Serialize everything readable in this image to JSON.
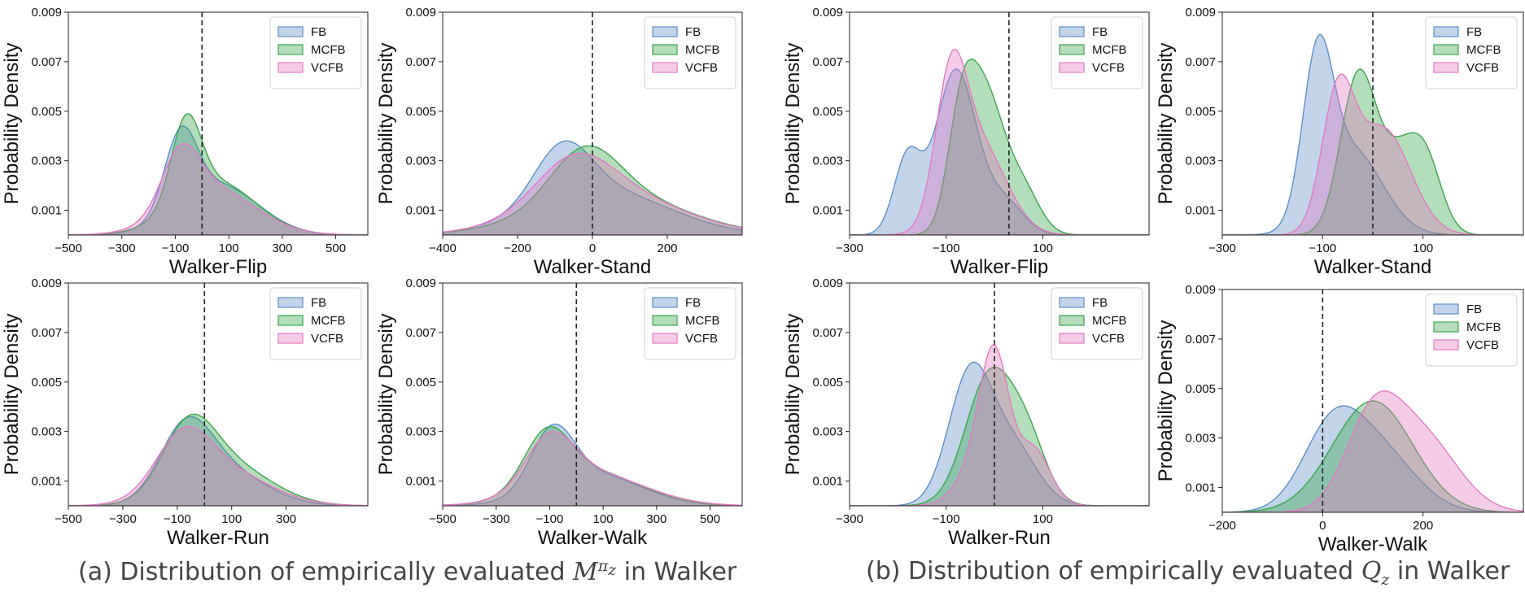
{
  "colors": {
    "FB": "#5b8fc7",
    "MCFB": "#3aa64a",
    "VCFB": "#e379c3"
  },
  "captions": {
    "a_prefix": "(a) Distribution of empirically evaluated ",
    "a_symbol": "M",
    "a_sup": "π",
    "a_sub": "z",
    "a_suffix": " in Walker",
    "b_prefix": "(b) Distribution of empirically evaluated ",
    "b_symbol": "Q",
    "b_sub": "z",
    "b_suffix": " in Walker"
  },
  "chart_data": [
    {
      "type": "area",
      "group": "a",
      "title": "",
      "xlabel": "Walker-Flip",
      "ylabel": "Probability Density",
      "xlim": [
        -500,
        620
      ],
      "ylim": [
        0,
        0.009
      ],
      "vline": 0,
      "xticks": [
        -500,
        -300,
        -100,
        100,
        300,
        500
      ],
      "yticks": [
        0.001,
        0.003,
        0.005,
        0.007,
        0.009
      ],
      "legend": [
        "FB",
        "MCFB",
        "VCFB"
      ],
      "legend_loc": "upper right",
      "series": [
        {
          "name": "FB",
          "comps": [
            [
              -80,
              60,
              0.6
            ],
            [
              60,
              150,
              0.4
            ]
          ]
        },
        {
          "name": "MCFB",
          "comps": [
            [
              -60,
              55,
              0.6
            ],
            [
              50,
              150,
              0.4
            ]
          ]
        },
        {
          "name": "VCFB",
          "comps": [
            [
              -80,
              70,
              0.55
            ],
            [
              40,
              160,
              0.45
            ]
          ]
        }
      ],
      "peaks": {
        "FB": 0.0044,
        "MCFB": 0.0049,
        "VCFB": 0.0037
      }
    },
    {
      "type": "area",
      "group": "a",
      "title": "",
      "xlabel": "Walker-Stand",
      "ylabel": "Probability Density",
      "xlim": [
        -400,
        400
      ],
      "ylim": [
        0,
        0.009
      ],
      "vline": 0,
      "xticks": [
        -400,
        -200,
        0,
        200
      ],
      "yticks": [
        0.001,
        0.003,
        0.005,
        0.007,
        0.009
      ],
      "legend": [
        "FB",
        "MCFB",
        "VCFB"
      ],
      "legend_loc": "upper right",
      "series": [
        {
          "name": "FB",
          "comps": [
            [
              -80,
              75,
              0.55
            ],
            [
              20,
              180,
              0.45
            ]
          ]
        },
        {
          "name": "MCFB",
          "comps": [
            [
              -20,
              90,
              0.55
            ],
            [
              50,
              190,
              0.45
            ]
          ]
        },
        {
          "name": "VCFB",
          "comps": [
            [
              -50,
              100,
              0.5
            ],
            [
              40,
              190,
              0.5
            ]
          ]
        }
      ],
      "peaks": {
        "FB": 0.0038,
        "MCFB": 0.0036,
        "VCFB": 0.0033
      }
    },
    {
      "type": "area",
      "group": "b",
      "title": "",
      "xlabel": "Walker-Flip",
      "ylabel": "Probability Density",
      "xlim": [
        -300,
        320
      ],
      "ylim": [
        0,
        0.009
      ],
      "vline": 30,
      "xticks": [
        -300,
        -100,
        100
      ],
      "yticks": [
        0.001,
        0.003,
        0.005,
        0.007,
        0.009
      ],
      "legend": [
        "FB",
        "MCFB",
        "VCFB"
      ],
      "legend_loc": "upper right",
      "series": [
        {
          "name": "FB",
          "comps": [
            [
              -180,
              28,
              0.28
            ],
            [
              -80,
              42,
              0.6
            ],
            [
              20,
              40,
              0.12
            ]
          ]
        },
        {
          "name": "MCFB",
          "comps": [
            [
              -70,
              28,
              0.4
            ],
            [
              -20,
              40,
              0.6
            ],
            [
              60,
              35,
              0.18
            ]
          ]
        },
        {
          "name": "VCFB",
          "comps": [
            [
              -90,
              32,
              0.6
            ],
            [
              -30,
              55,
              0.4
            ]
          ]
        }
      ],
      "peaks": {
        "FB": 0.0067,
        "MCFB": 0.0071,
        "VCFB": 0.0075
      }
    },
    {
      "type": "area",
      "group": "b",
      "title": "",
      "xlabel": "Walker-Stand",
      "ylabel": "Probability Density",
      "xlim": [
        -300,
        300
      ],
      "ylim": [
        0,
        0.009
      ],
      "vline": 0,
      "xticks": [
        -300,
        -100,
        100
      ],
      "yticks": [
        0.001,
        0.003,
        0.005,
        0.007,
        0.009
      ],
      "legend": [
        "FB",
        "MCFB",
        "VCFB"
      ],
      "legend_loc": "upper right",
      "series": [
        {
          "name": "FB",
          "comps": [
            [
              -110,
              30,
              0.65
            ],
            [
              -40,
              60,
              0.35
            ]
          ]
        },
        {
          "name": "MCFB",
          "comps": [
            [
              -30,
              35,
              0.55
            ],
            [
              60,
              45,
              0.3
            ],
            [
              110,
              30,
              0.15
            ]
          ]
        },
        {
          "name": "VCFB",
          "comps": [
            [
              -70,
              32,
              0.55
            ],
            [
              20,
              55,
              0.45
            ]
          ]
        }
      ],
      "peaks": {
        "FB": 0.0081,
        "MCFB": 0.0067,
        "VCFB": 0.0065
      }
    },
    {
      "type": "area",
      "group": "a",
      "title": "",
      "xlabel": "Walker-Run",
      "ylabel": "Probability Density",
      "xlim": [
        -500,
        600
      ],
      "ylim": [
        0,
        0.009
      ],
      "vline": 0,
      "xticks": [
        -500,
        -300,
        -100,
        100,
        300
      ],
      "yticks": [
        0.001,
        0.003,
        0.005,
        0.007,
        0.009
      ],
      "legend": [
        "FB",
        "MCFB",
        "VCFB"
      ],
      "legend_loc": "upper right",
      "series": [
        {
          "name": "FB",
          "comps": [
            [
              -70,
              95,
              0.65
            ],
            [
              70,
              150,
              0.35
            ]
          ]
        },
        {
          "name": "MCFB",
          "comps": [
            [
              -60,
              95,
              0.6
            ],
            [
              80,
              160,
              0.4
            ]
          ]
        },
        {
          "name": "VCFB",
          "comps": [
            [
              -80,
              100,
              0.6
            ],
            [
              60,
              170,
              0.4
            ]
          ]
        }
      ],
      "peaks": {
        "FB": 0.0036,
        "MCFB": 0.0037,
        "VCFB": 0.0032
      }
    },
    {
      "type": "area",
      "group": "a",
      "title": "",
      "xlabel": "Walker-Walk",
      "ylabel": "Probability Density",
      "xlim": [
        -500,
        620
      ],
      "ylim": [
        0,
        0.009
      ],
      "vline": 0,
      "xticks": [
        -500,
        -300,
        -100,
        100,
        300,
        500
      ],
      "yticks": [
        0.001,
        0.003,
        0.005,
        0.007,
        0.009
      ],
      "legend": [
        "FB",
        "MCFB",
        "VCFB"
      ],
      "legend_loc": "upper right",
      "series": [
        {
          "name": "FB",
          "comps": [
            [
              -90,
              80,
              0.65
            ],
            [
              60,
              180,
              0.35
            ]
          ]
        },
        {
          "name": "MCFB",
          "comps": [
            [
              -110,
              85,
              0.6
            ],
            [
              40,
              190,
              0.4
            ]
          ]
        },
        {
          "name": "VCFB",
          "comps": [
            [
              -100,
              90,
              0.6
            ],
            [
              50,
              200,
              0.4
            ]
          ]
        }
      ],
      "peaks": {
        "FB": 0.0033,
        "MCFB": 0.0032,
        "VCFB": 0.003
      }
    },
    {
      "type": "area",
      "group": "b",
      "title": "",
      "xlabel": "Walker-Run",
      "ylabel": "Probability Density",
      "xlim": [
        -300,
        320
      ],
      "ylim": [
        0,
        0.009
      ],
      "vline": 0,
      "xticks": [
        -300,
        -100,
        100
      ],
      "yticks": [
        0.001,
        0.003,
        0.005,
        0.007,
        0.009
      ],
      "legend": [
        "FB",
        "MCFB",
        "VCFB"
      ],
      "legend_loc": "upper right",
      "series": [
        {
          "name": "FB",
          "comps": [
            [
              -50,
              45,
              0.7
            ],
            [
              40,
              50,
              0.3
            ]
          ]
        },
        {
          "name": "MCFB",
          "comps": [
            [
              -10,
              50,
              0.7
            ],
            [
              70,
              40,
              0.3
            ]
          ]
        },
        {
          "name": "VCFB",
          "comps": [
            [
              0,
              30,
              0.6
            ],
            [
              80,
              35,
              0.25
            ],
            [
              -40,
              40,
              0.15
            ]
          ]
        }
      ],
      "peaks": {
        "FB": 0.0058,
        "MCFB": 0.0056,
        "VCFB": 0.0065
      }
    },
    {
      "type": "area",
      "group": "b",
      "title": "",
      "xlabel": "Walker-Walk",
      "ylabel": "Probability Density",
      "xlim": [
        -200,
        400
      ],
      "ylim": [
        0,
        0.009
      ],
      "vline": 0,
      "xticks": [
        -200,
        0,
        200
      ],
      "yticks": [
        0.001,
        0.003,
        0.005,
        0.007,
        0.009
      ],
      "legend": [
        "FB",
        "MCFB",
        "VCFB"
      ],
      "legend_loc": "upper right",
      "series": [
        {
          "name": "FB",
          "comps": [
            [
              20,
              60,
              0.6
            ],
            [
              120,
              70,
              0.4
            ]
          ]
        },
        {
          "name": "MCFB",
          "comps": [
            [
              100,
              80,
              1.0
            ]
          ]
        },
        {
          "name": "VCFB",
          "comps": [
            [
              100,
              55,
              0.55
            ],
            [
              200,
              70,
              0.45
            ]
          ]
        }
      ],
      "peaks": {
        "FB": 0.0043,
        "MCFB": 0.0045,
        "VCFB": 0.0049
      }
    }
  ]
}
